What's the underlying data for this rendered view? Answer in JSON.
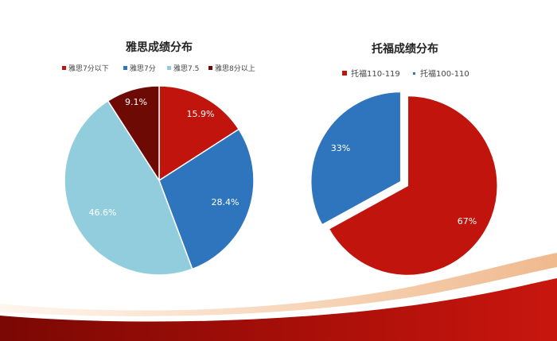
{
  "chart_data": [
    {
      "type": "pie",
      "title": "雅思成绩分布",
      "legend_position": "top",
      "categories": [
        "雅思7分以下",
        "雅思7分",
        "雅思7.5",
        "雅思8分以上"
      ],
      "values": [
        15.9,
        28.4,
        46.6,
        9.1
      ],
      "data_labels": [
        "15.9%",
        "28.4%",
        "46.6%",
        "9.1%"
      ],
      "colors": [
        "#C0140C",
        "#2E75BE",
        "#92CDDD",
        "#6E0A04"
      ]
    },
    {
      "type": "pie",
      "title": "托福成绩分布",
      "legend_position": "top",
      "categories": [
        "托福110-119",
        "托福100-110"
      ],
      "values": [
        67,
        33
      ],
      "data_labels": [
        "67%",
        "33%"
      ],
      "colors": [
        "#C0140C",
        "#2E75BE"
      ],
      "exploded": true
    }
  ],
  "decoration": {
    "wave_colors": [
      "#8C0A06",
      "#C8160E",
      "#F3C9A4",
      "#FFFFFF"
    ]
  }
}
